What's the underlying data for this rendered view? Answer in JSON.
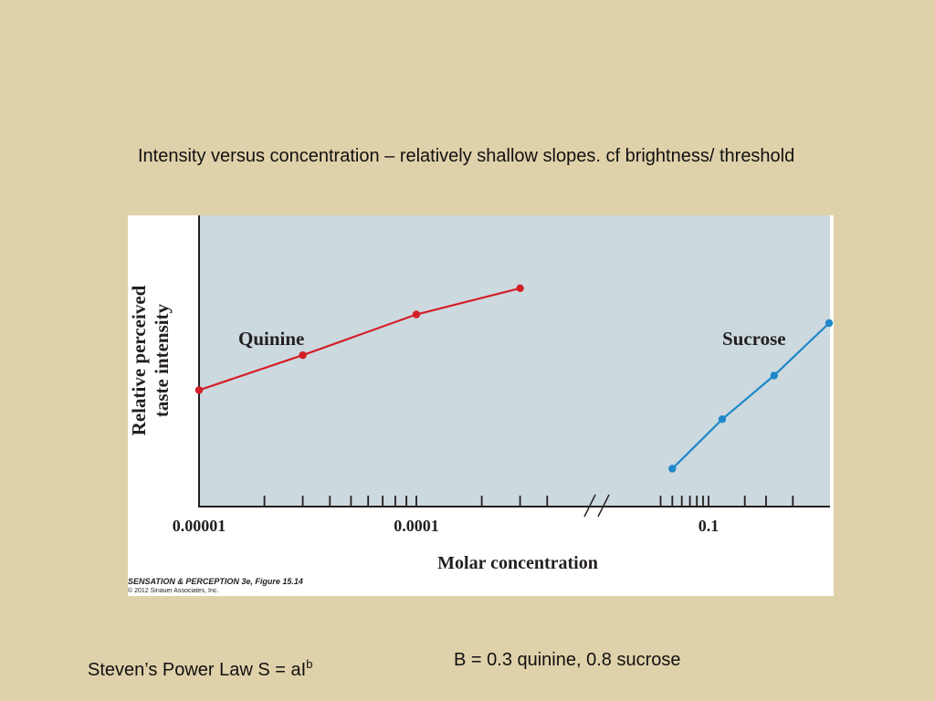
{
  "slide": {
    "caption": "Intensity versus concentration – relatively shallow slopes.  cf brightness/ threshold",
    "law_prefix": "Steven’s Power Law  S = aI",
    "law_exponent": "b",
    "exponents": "B = 0.3 quinine,  0.8 sucrose"
  },
  "figure_credit": {
    "title": "SENSATION & PERCEPTION 3e, Figure 15.14",
    "copyright": "© 2012 Sinauer Associates, Inc."
  },
  "colors": {
    "background": "#dfd1aa",
    "plot_area": "#ccd9df",
    "quinine": "#d41f26",
    "sucrose": "#1e88c8"
  },
  "chart_data": {
    "type": "line",
    "title": "",
    "xlabel": "Molar concentration",
    "ylabel": "Relative perceived taste intensity",
    "ylabel_lines": [
      "Relative perceived",
      "taste intensity"
    ],
    "x_scale": "log",
    "axis_break": "//",
    "y_ticks": "none",
    "tick_labels": [
      "0.00001",
      "0.0001",
      "0.1"
    ],
    "grid": false,
    "legend": "inline labels next to each series",
    "series": [
      {
        "name": "Quinine",
        "color": "#d41f26",
        "x": [
          1e-05,
          3e-05,
          0.0001,
          0.0003
        ],
        "y": [
          0.4,
          0.52,
          0.66,
          0.75
        ]
      },
      {
        "name": "Sucrose",
        "color": "#1e88c8",
        "x": [
          0.05,
          0.13,
          0.35,
          1.0
        ],
        "y": [
          0.13,
          0.3,
          0.45,
          0.63
        ]
      }
    ]
  }
}
